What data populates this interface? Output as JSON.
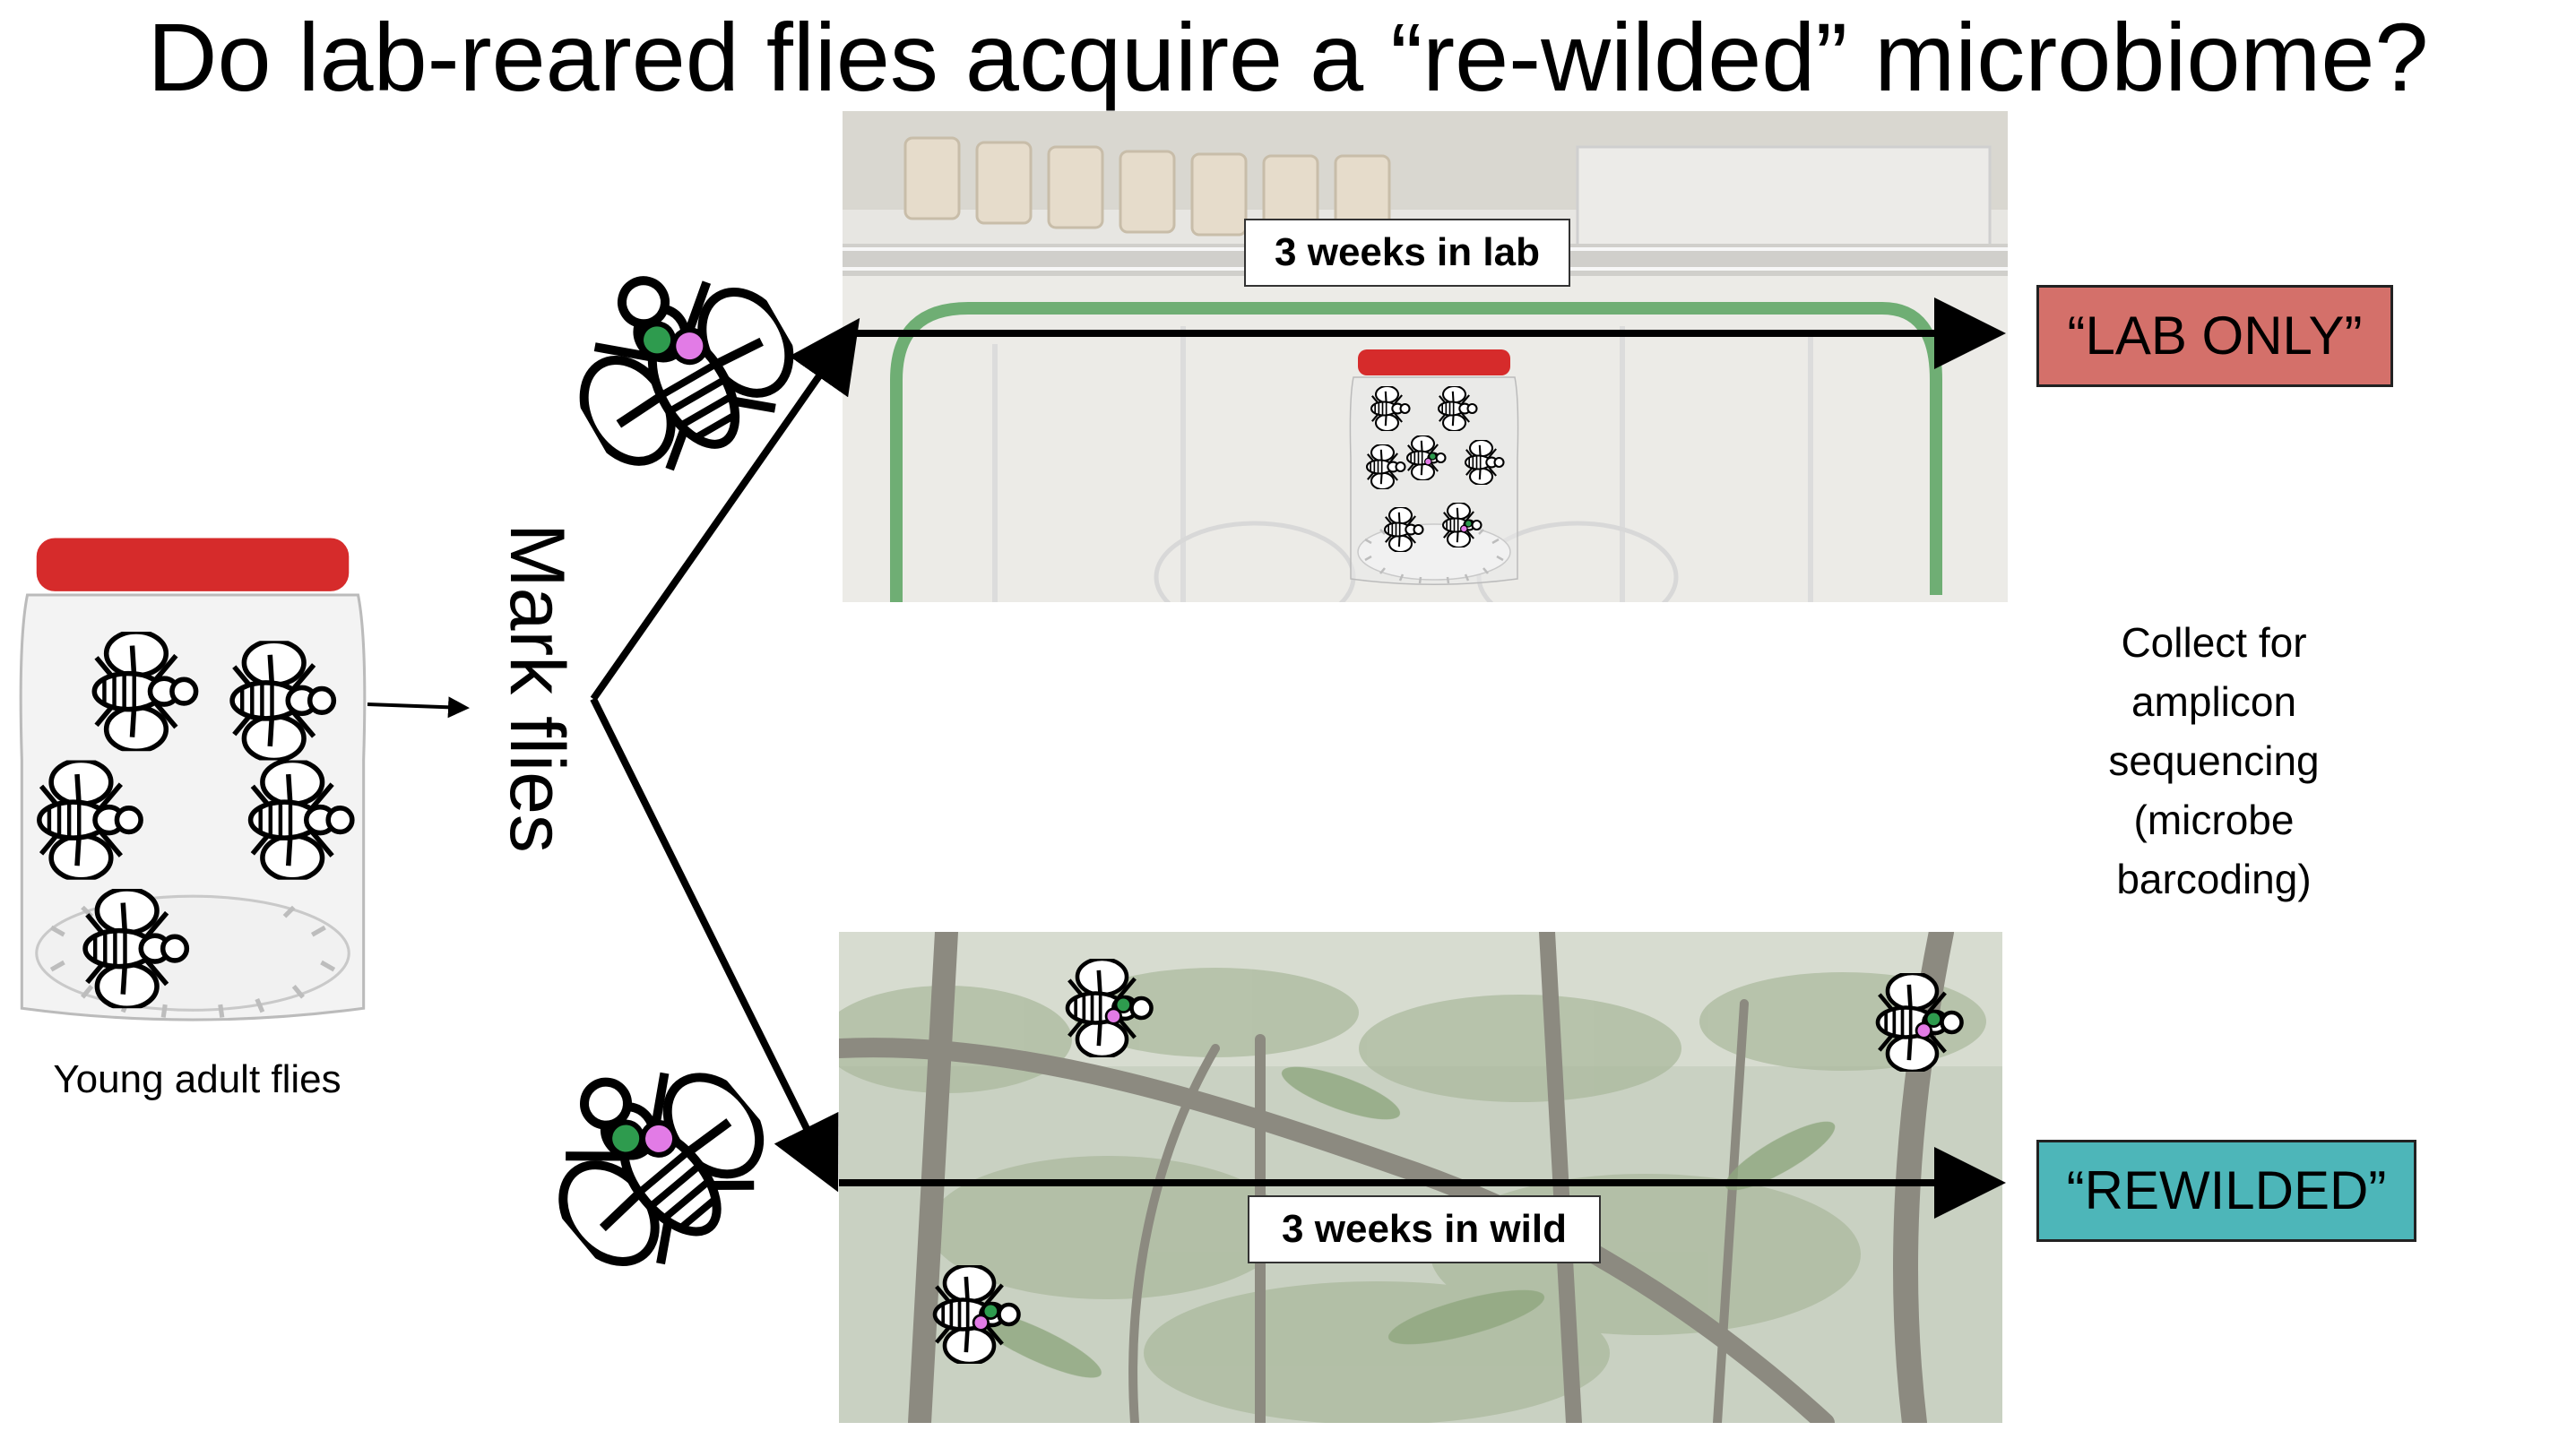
{
  "title": "Do lab-reared flies acquire a “re-wilded” microbiome?",
  "start": {
    "caption": "Young adult flies",
    "icons": [
      "jar-icon",
      "fly-icon"
    ]
  },
  "step": {
    "label": "Mark flies",
    "icons": [
      "marked-fly-icon",
      "arrow-icon"
    ]
  },
  "lab_branch": {
    "duration_label": "3 weeks in lab",
    "outcome_label": "“LAB ONLY”",
    "outcome_color": "#D4706A",
    "photo_icon": "lab-shelf-photo"
  },
  "wild_branch": {
    "duration_label": "3 weeks in wild",
    "outcome_label": "“REWILDED”",
    "outcome_color": "#4DB6B9",
    "photo_icon": "forest-photo"
  },
  "note": {
    "lines": [
      "Collect for",
      "amplicon",
      "sequencing",
      "(microbe",
      "barcoding)"
    ]
  },
  "colors": {
    "jar_lid": "#D62B2B",
    "mark_green": "#2E9B4E",
    "mark_pink": "#E27BE6"
  }
}
